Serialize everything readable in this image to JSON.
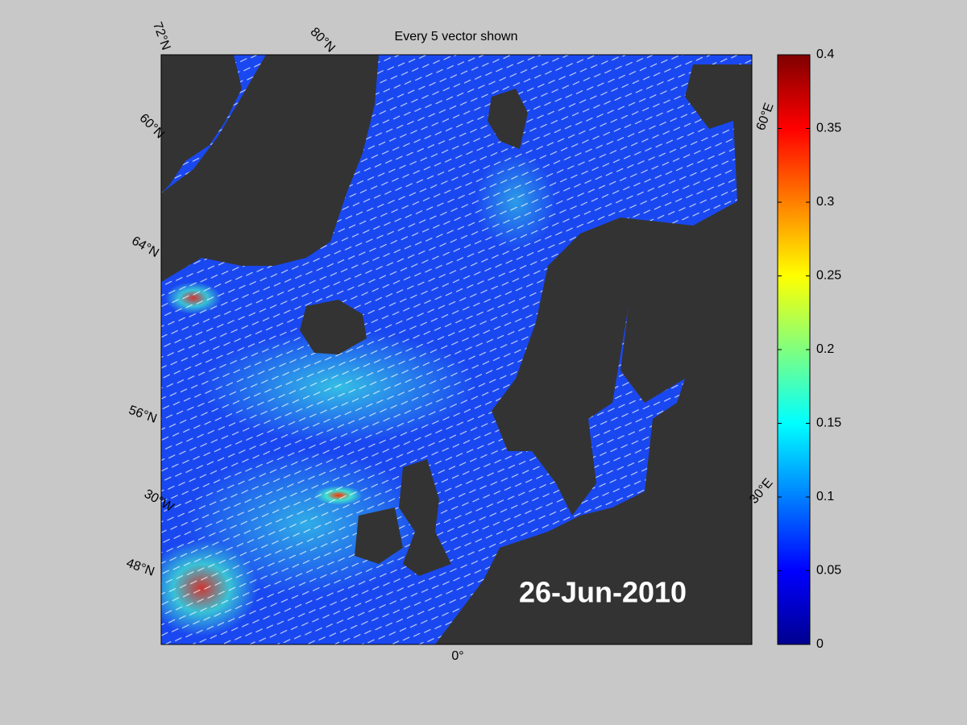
{
  "title": "Every 5 vector shown",
  "date": "26-Jun-2010",
  "graticule_labels": [
    "72°N",
    "80°N",
    "60°N",
    "64°N",
    "56°N",
    "30°W",
    "48°N",
    "0°",
    "30°E",
    "60°E"
  ],
  "colorbar": {
    "ylim": [
      0,
      0.4
    ],
    "yticks": [
      0,
      0.05,
      0.1,
      0.15,
      0.2,
      0.25,
      0.3,
      0.35,
      0.4
    ]
  }
}
